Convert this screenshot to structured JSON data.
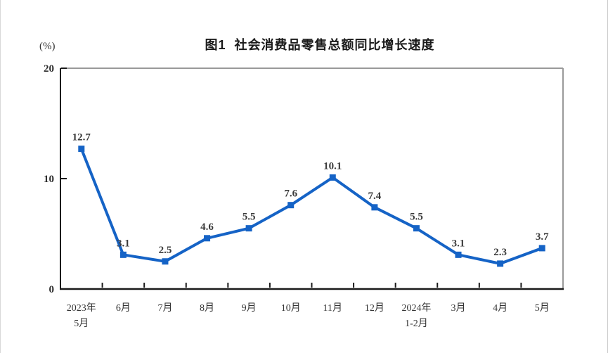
{
  "page": {
    "title": "图1  社会消费品零售总额同比增长速度",
    "unit_label": "(%)"
  },
  "chart_data": {
    "type": "line",
    "title": "图1  社会消费品零售总额同比增长速度",
    "series_name": "社会消费品零售总额同比增长速度",
    "unit": "(%)",
    "categories": [
      [
        "2023年",
        "5月"
      ],
      [
        "6月"
      ],
      [
        "7月"
      ],
      [
        "8月"
      ],
      [
        "9月"
      ],
      [
        "10月"
      ],
      [
        "11月"
      ],
      [
        "12月"
      ],
      [
        "2024年",
        "1-2月"
      ],
      [
        "3月"
      ],
      [
        "4月"
      ],
      [
        "5月"
      ]
    ],
    "values": [
      12.7,
      3.1,
      2.5,
      4.6,
      5.5,
      7.6,
      10.1,
      7.4,
      5.5,
      3.1,
      2.3,
      3.7
    ],
    "xlabel": "",
    "ylabel": "(%)",
    "ylim": [
      0,
      20
    ],
    "yticks": [
      0,
      10,
      20
    ],
    "grid": false,
    "legend_position": "none",
    "line_color": "#1563c6",
    "marker": "square",
    "label_color": "#3b3b3b",
    "axis_color": "#1a1a1a",
    "frame_color": "#999999"
  }
}
